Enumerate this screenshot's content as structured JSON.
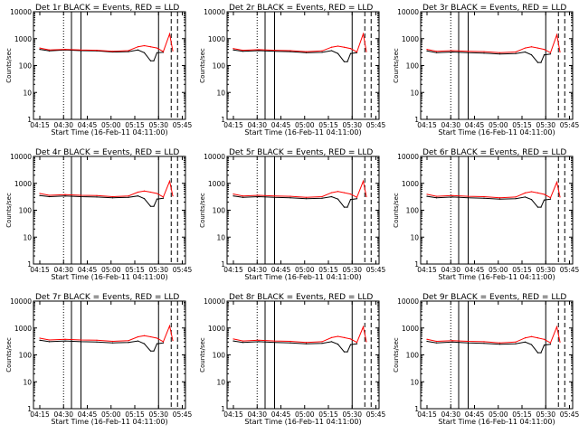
{
  "figure": {
    "x_axis_label": "Start Time (16-Feb-11 04:11:00)",
    "y_axis_label": "Counts/sec",
    "x_tick_labels": [
      "04:15",
      "04:30",
      "04:45",
      "05:00",
      "05:15",
      "05:30",
      "05:45"
    ],
    "y_tick_labels": [
      "1",
      "10",
      "100",
      "1000",
      "10000"
    ],
    "colors": {
      "events": "#000000",
      "lld": "#ff0000"
    }
  },
  "chart_data": [
    {
      "type": "line",
      "title": "Det 1r BLACK = Events, RED = LLD",
      "xlabel": "Start Time (16-Feb-11 04:11:00)",
      "ylabel": "Counts/sec",
      "x_ticks": [
        "04:15",
        "04:30",
        "04:45",
        "05:00",
        "05:15",
        "05:30",
        "05:45"
      ],
      "y_ticks": [
        1,
        10,
        100,
        1000,
        10000
      ],
      "xlim_minutes_after_start": [
        0,
        96
      ],
      "ylim": [
        1,
        10000
      ],
      "yscale": "log",
      "series": [
        {
          "name": "Events",
          "color": "#000000",
          "x": [
            4,
            10,
            20,
            30,
            40,
            50,
            60,
            66,
            70,
            74,
            76,
            78,
            82
          ],
          "y": [
            400,
            350,
            380,
            360,
            350,
            320,
            330,
            380,
            300,
            150,
            150,
            300,
            310
          ]
        },
        {
          "name": "LLD",
          "color": "#ff0000",
          "x": [
            4,
            10,
            20,
            30,
            40,
            50,
            60,
            66,
            70,
            74,
            78,
            82,
            86,
            88
          ],
          "y": [
            450,
            380,
            400,
            380,
            370,
            340,
            360,
            500,
            550,
            500,
            450,
            330,
            1500,
            350
          ]
        }
      ],
      "vertical_lines": [
        {
          "style": "dotted",
          "x": 19
        },
        {
          "style": "solid",
          "x": 24
        },
        {
          "style": "solid",
          "x": 30
        },
        {
          "style": "solid",
          "x": 79
        },
        {
          "style": "dashed",
          "x": 87
        },
        {
          "style": "dashed",
          "x": 91
        }
      ]
    },
    {
      "type": "line",
      "title": "Det 2r BLACK = Events, RED = LLD",
      "xlabel": "Start Time (16-Feb-11 04:11:00)",
      "ylabel": "Counts/sec",
      "x_ticks": [
        "04:15",
        "04:30",
        "04:45",
        "05:00",
        "05:15",
        "05:30",
        "05:45"
      ],
      "y_ticks": [
        1,
        10,
        100,
        1000,
        10000
      ],
      "xlim_minutes_after_start": [
        0,
        96
      ],
      "ylim": [
        1,
        10000
      ],
      "yscale": "log",
      "series": [
        {
          "name": "Events",
          "color": "#000000",
          "x": [
            4,
            10,
            20,
            30,
            40,
            50,
            60,
            66,
            70,
            74,
            76,
            78,
            82
          ],
          "y": [
            380,
            340,
            360,
            340,
            330,
            300,
            310,
            360,
            280,
            140,
            140,
            280,
            300
          ]
        },
        {
          "name": "LLD",
          "color": "#ff0000",
          "x": [
            4,
            10,
            20,
            30,
            40,
            50,
            60,
            66,
            70,
            74,
            78,
            82,
            86,
            88
          ],
          "y": [
            430,
            370,
            390,
            370,
            360,
            330,
            350,
            480,
            530,
            480,
            430,
            320,
            1500,
            330
          ]
        }
      ],
      "vertical_lines": [
        {
          "style": "dotted",
          "x": 19
        },
        {
          "style": "solid",
          "x": 24
        },
        {
          "style": "solid",
          "x": 30
        },
        {
          "style": "solid",
          "x": 79
        },
        {
          "style": "dashed",
          "x": 87
        },
        {
          "style": "dashed",
          "x": 91
        }
      ]
    },
    {
      "type": "line",
      "title": "Det 3r BLACK = Events, RED = LLD",
      "xlabel": "Start Time (16-Feb-11 04:11:00)",
      "ylabel": "Counts/sec",
      "x_ticks": [
        "04:15",
        "04:30",
        "04:45",
        "05:00",
        "05:15",
        "05:30",
        "05:45"
      ],
      "y_ticks": [
        1,
        10,
        100,
        1000,
        10000
      ],
      "xlim_minutes_after_start": [
        0,
        96
      ],
      "ylim": [
        1,
        10000
      ],
      "yscale": "log",
      "series": [
        {
          "name": "Events",
          "color": "#000000",
          "x": [
            4,
            10,
            20,
            30,
            40,
            50,
            60,
            66,
            70,
            74,
            76,
            78,
            82
          ],
          "y": [
            350,
            300,
            320,
            300,
            290,
            270,
            280,
            320,
            250,
            130,
            130,
            250,
            270
          ]
        },
        {
          "name": "LLD",
          "color": "#ff0000",
          "x": [
            4,
            10,
            20,
            30,
            40,
            50,
            60,
            66,
            70,
            74,
            78,
            82,
            86,
            88
          ],
          "y": [
            400,
            340,
            360,
            340,
            330,
            300,
            320,
            450,
            500,
            450,
            400,
            300,
            1400,
            320
          ]
        }
      ],
      "vertical_lines": [
        {
          "style": "dotted",
          "x": 19
        },
        {
          "style": "solid",
          "x": 24
        },
        {
          "style": "solid",
          "x": 30
        },
        {
          "style": "solid",
          "x": 79
        },
        {
          "style": "dashed",
          "x": 87
        },
        {
          "style": "dashed",
          "x": 91
        }
      ]
    },
    {
      "type": "line",
      "title": "Det 4r BLACK = Events, RED = LLD",
      "xlabel": "Start Time (16-Feb-11 04:11:00)",
      "ylabel": "Counts/sec",
      "x_ticks": [
        "04:15",
        "04:30",
        "04:45",
        "05:00",
        "05:15",
        "05:30",
        "05:45"
      ],
      "y_ticks": [
        1,
        10,
        100,
        1000,
        10000
      ],
      "xlim_minutes_after_start": [
        0,
        96
      ],
      "ylim": [
        1,
        10000
      ],
      "yscale": "log",
      "series": [
        {
          "name": "Events",
          "color": "#000000",
          "x": [
            4,
            10,
            20,
            30,
            40,
            50,
            60,
            66,
            70,
            74,
            76,
            78,
            82
          ],
          "y": [
            350,
            320,
            340,
            320,
            310,
            290,
            300,
            340,
            270,
            140,
            140,
            260,
            280
          ]
        },
        {
          "name": "LLD",
          "color": "#ff0000",
          "x": [
            4,
            10,
            20,
            30,
            40,
            50,
            60,
            66,
            70,
            74,
            78,
            82,
            86,
            88
          ],
          "y": [
            420,
            360,
            380,
            360,
            350,
            320,
            340,
            470,
            520,
            470,
            420,
            310,
            1200,
            340
          ]
        }
      ],
      "vertical_lines": [
        {
          "style": "dotted",
          "x": 19
        },
        {
          "style": "solid",
          "x": 24
        },
        {
          "style": "solid",
          "x": 30
        },
        {
          "style": "solid",
          "x": 79
        },
        {
          "style": "dashed",
          "x": 87
        },
        {
          "style": "dashed",
          "x": 91
        }
      ]
    },
    {
      "type": "line",
      "title": "Det 5r BLACK = Events, RED = LLD",
      "xlabel": "Start Time (16-Feb-11 04:11:00)",
      "ylabel": "Counts/sec",
      "x_ticks": [
        "04:15",
        "04:30",
        "04:45",
        "05:00",
        "05:15",
        "05:30",
        "05:45"
      ],
      "y_ticks": [
        1,
        10,
        100,
        1000,
        10000
      ],
      "xlim_minutes_after_start": [
        0,
        96
      ],
      "ylim": [
        1,
        10000
      ],
      "yscale": "log",
      "series": [
        {
          "name": "Events",
          "color": "#000000",
          "x": [
            4,
            10,
            20,
            30,
            40,
            50,
            60,
            66,
            70,
            74,
            76,
            78,
            82
          ],
          "y": [
            340,
            300,
            320,
            300,
            290,
            270,
            280,
            320,
            260,
            130,
            130,
            250,
            270
          ]
        },
        {
          "name": "LLD",
          "color": "#ff0000",
          "x": [
            4,
            10,
            20,
            30,
            40,
            50,
            60,
            66,
            70,
            74,
            78,
            82,
            86,
            88
          ],
          "y": [
            400,
            340,
            360,
            340,
            330,
            300,
            320,
            450,
            500,
            450,
            400,
            300,
            1200,
            320
          ]
        }
      ],
      "vertical_lines": [
        {
          "style": "dotted",
          "x": 19
        },
        {
          "style": "solid",
          "x": 24
        },
        {
          "style": "solid",
          "x": 30
        },
        {
          "style": "solid",
          "x": 79
        },
        {
          "style": "dashed",
          "x": 87
        },
        {
          "style": "dashed",
          "x": 91
        }
      ]
    },
    {
      "type": "line",
      "title": "Det 6r BLACK = Events, RED = LLD",
      "xlabel": "Start Time (16-Feb-11 04:11:00)",
      "ylabel": "Counts/sec",
      "x_ticks": [
        "04:15",
        "04:30",
        "04:45",
        "05:00",
        "05:15",
        "05:30",
        "05:45"
      ],
      "y_ticks": [
        1,
        10,
        100,
        1000,
        10000
      ],
      "xlim_minutes_after_start": [
        0,
        96
      ],
      "ylim": [
        1,
        10000
      ],
      "yscale": "log",
      "series": [
        {
          "name": "Events",
          "color": "#000000",
          "x": [
            4,
            10,
            20,
            30,
            40,
            50,
            60,
            66,
            70,
            74,
            76,
            78,
            82
          ],
          "y": [
            330,
            290,
            310,
            290,
            280,
            260,
            270,
            310,
            250,
            130,
            130,
            240,
            260
          ]
        },
        {
          "name": "LLD",
          "color": "#ff0000",
          "x": [
            4,
            10,
            20,
            30,
            40,
            50,
            60,
            66,
            70,
            74,
            78,
            82,
            86,
            88
          ],
          "y": [
            390,
            330,
            350,
            330,
            320,
            290,
            310,
            440,
            490,
            440,
            390,
            290,
            1100,
            310
          ]
        }
      ],
      "vertical_lines": [
        {
          "style": "dotted",
          "x": 19
        },
        {
          "style": "solid",
          "x": 24
        },
        {
          "style": "solid",
          "x": 30
        },
        {
          "style": "solid",
          "x": 79
        },
        {
          "style": "dashed",
          "x": 87
        },
        {
          "style": "dashed",
          "x": 91
        }
      ]
    },
    {
      "type": "line",
      "title": "Det 7r BLACK = Events, RED = LLD",
      "xlabel": "Start Time (16-Feb-11 04:11:00)",
      "ylabel": "Counts/sec",
      "x_ticks": [
        "04:15",
        "04:30",
        "04:45",
        "05:00",
        "05:15",
        "05:30",
        "05:45"
      ],
      "y_ticks": [
        1,
        10,
        100,
        1000,
        10000
      ],
      "xlim_minutes_after_start": [
        0,
        96
      ],
      "ylim": [
        1,
        10000
      ],
      "yscale": "log",
      "series": [
        {
          "name": "Events",
          "color": "#000000",
          "x": [
            4,
            10,
            20,
            30,
            40,
            50,
            60,
            66,
            70,
            74,
            76,
            78,
            82
          ],
          "y": [
            350,
            310,
            330,
            310,
            300,
            280,
            290,
            330,
            260,
            140,
            140,
            260,
            280
          ]
        },
        {
          "name": "LLD",
          "color": "#ff0000",
          "x": [
            4,
            10,
            20,
            30,
            40,
            50,
            60,
            66,
            70,
            74,
            78,
            82,
            86,
            88
          ],
          "y": [
            420,
            360,
            380,
            360,
            350,
            320,
            340,
            470,
            520,
            470,
            420,
            310,
            1200,
            340
          ]
        }
      ],
      "vertical_lines": [
        {
          "style": "dotted",
          "x": 19
        },
        {
          "style": "solid",
          "x": 24
        },
        {
          "style": "solid",
          "x": 30
        },
        {
          "style": "solid",
          "x": 79
        },
        {
          "style": "dashed",
          "x": 87
        },
        {
          "style": "dashed",
          "x": 91
        }
      ]
    },
    {
      "type": "line",
      "title": "Det 8r BLACK = Events, RED = LLD",
      "xlabel": "Start Time (16-Feb-11 04:11:00)",
      "ylabel": "Counts/sec",
      "x_ticks": [
        "04:15",
        "04:30",
        "04:45",
        "05:00",
        "05:15",
        "05:30",
        "05:45"
      ],
      "y_ticks": [
        1,
        10,
        100,
        1000,
        10000
      ],
      "xlim_minutes_after_start": [
        0,
        96
      ],
      "ylim": [
        1,
        10000
      ],
      "yscale": "log",
      "series": [
        {
          "name": "Events",
          "color": "#000000",
          "x": [
            4,
            10,
            20,
            30,
            40,
            50,
            60,
            66,
            70,
            74,
            76,
            78,
            82
          ],
          "y": [
            330,
            290,
            310,
            290,
            280,
            260,
            270,
            310,
            250,
            130,
            130,
            240,
            260
          ]
        },
        {
          "name": "LLD",
          "color": "#ff0000",
          "x": [
            4,
            10,
            20,
            30,
            40,
            50,
            60,
            66,
            70,
            74,
            78,
            82,
            86,
            88
          ],
          "y": [
            390,
            330,
            350,
            330,
            320,
            290,
            310,
            440,
            490,
            440,
            390,
            290,
            1100,
            310
          ]
        }
      ],
      "vertical_lines": [
        {
          "style": "dotted",
          "x": 19
        },
        {
          "style": "solid",
          "x": 24
        },
        {
          "style": "solid",
          "x": 30
        },
        {
          "style": "solid",
          "x": 79
        },
        {
          "style": "dashed",
          "x": 87
        },
        {
          "style": "dashed",
          "x": 91
        }
      ]
    },
    {
      "type": "line",
      "title": "Det 9r BLACK = Events, RED = LLD",
      "xlabel": "Start Time (16-Feb-11 04:11:00)",
      "ylabel": "Counts/sec",
      "x_ticks": [
        "04:15",
        "04:30",
        "04:45",
        "05:00",
        "05:15",
        "05:30",
        "05:45"
      ],
      "y_ticks": [
        1,
        10,
        100,
        1000,
        10000
      ],
      "xlim_minutes_after_start": [
        0,
        96
      ],
      "ylim": [
        1,
        10000
      ],
      "yscale": "log",
      "series": [
        {
          "name": "Events",
          "color": "#000000",
          "x": [
            4,
            10,
            20,
            30,
            40,
            50,
            60,
            66,
            70,
            74,
            76,
            78,
            82
          ],
          "y": [
            320,
            280,
            300,
            280,
            270,
            250,
            260,
            300,
            240,
            120,
            120,
            230,
            250
          ]
        },
        {
          "name": "LLD",
          "color": "#ff0000",
          "x": [
            4,
            10,
            20,
            30,
            40,
            50,
            60,
            66,
            70,
            74,
            78,
            82,
            86,
            88
          ],
          "y": [
            380,
            320,
            340,
            320,
            310,
            280,
            300,
            430,
            480,
            430,
            380,
            280,
            1100,
            300
          ]
        }
      ],
      "vertical_lines": [
        {
          "style": "dotted",
          "x": 19
        },
        {
          "style": "solid",
          "x": 24
        },
        {
          "style": "solid",
          "x": 30
        },
        {
          "style": "solid",
          "x": 79
        },
        {
          "style": "dashed",
          "x": 87
        },
        {
          "style": "dashed",
          "x": 91
        }
      ]
    }
  ]
}
